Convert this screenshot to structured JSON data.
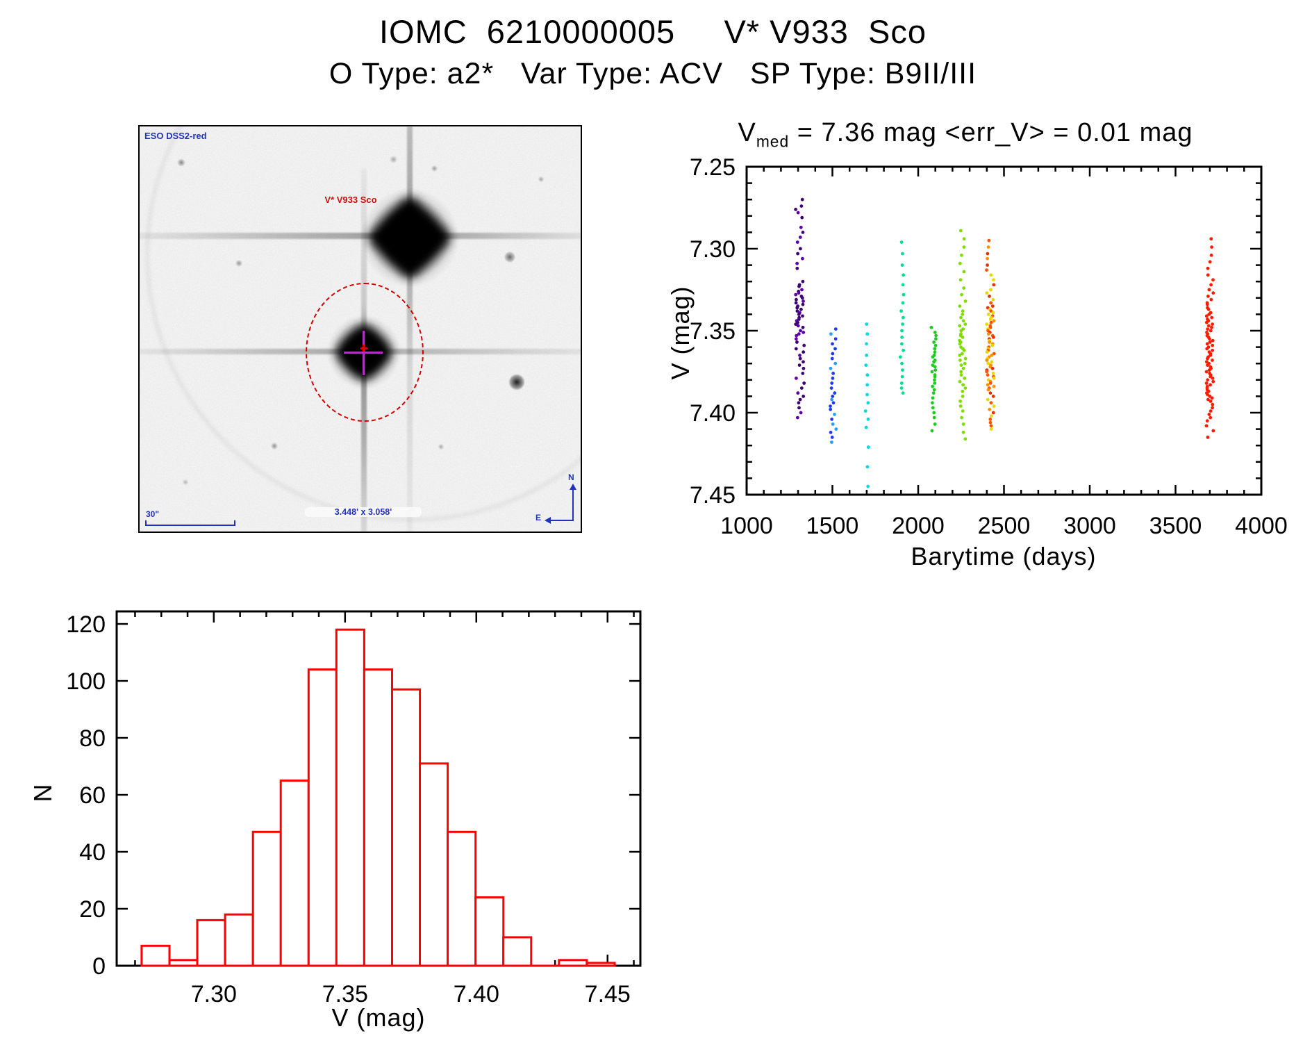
{
  "header": {
    "title": "IOMC  6210000005     V* V933  Sco",
    "subtitle": "O Type: a2*   Var Type: ACV   SP Type: B9II/III"
  },
  "finder_image": {
    "survey_label": "ESO DSS2-red",
    "target_label": "V* V933 Sco",
    "scale_bar_label": "30\"",
    "fov_label": "3.448' x 3.058'",
    "compass": {
      "north": "N",
      "east": "E"
    },
    "annotation_color": "#2233bb",
    "target_color": "#cc1111"
  },
  "chart_data": [
    {
      "type": "scatter",
      "title": {
        "prefix": "V",
        "subscript": "med",
        "suffix": " = 7.36 mag <err_V> = 0.01 mag"
      },
      "xlabel": "Barytime (days)",
      "ylabel": "V (mag)",
      "xlim": [
        1000,
        4000
      ],
      "ylim": [
        7.25,
        7.45
      ],
      "y_inverted_magnitude_axis": true,
      "xticks": [
        1000,
        1500,
        2000,
        2500,
        3000,
        3500,
        4000
      ],
      "yticks": [
        7.25,
        7.3,
        7.35,
        7.4,
        7.45
      ],
      "x_minor": 100,
      "y_minor": 0.01,
      "grid": false,
      "legend": "none",
      "series": [
        {
          "name": "epoch-1310",
          "x": 1310,
          "x_jitter": 25,
          "color": "#3d0073",
          "color2": "#5c00aa",
          "values": [
            7.27,
            7.274,
            7.276,
            7.278,
            7.281,
            7.287,
            7.29,
            7.293,
            7.296,
            7.3,
            7.303,
            7.306,
            7.309,
            7.312,
            7.32,
            7.322,
            7.323,
            7.325,
            7.326,
            7.327,
            7.328,
            7.329,
            7.33,
            7.331,
            7.332,
            7.333,
            7.334,
            7.335,
            7.336,
            7.337,
            7.338,
            7.339,
            7.34,
            7.341,
            7.342,
            7.343,
            7.344,
            7.345,
            7.346,
            7.347,
            7.348,
            7.35,
            7.351,
            7.352,
            7.353,
            7.355,
            7.357,
            7.359,
            7.361,
            7.363,
            7.365,
            7.367,
            7.369,
            7.371,
            7.373,
            7.376,
            7.379,
            7.382,
            7.385,
            7.388,
            7.39,
            7.392,
            7.394,
            7.397,
            7.4,
            7.403
          ]
        },
        {
          "name": "epoch-1505",
          "x": 1505,
          "x_jitter": 18,
          "color": "#1f3cec",
          "color2": "#2a9df4",
          "values": [
            7.349,
            7.352,
            7.355,
            7.358,
            7.361,
            7.364,
            7.367,
            7.37,
            7.373,
            7.376,
            7.379,
            7.382,
            7.385,
            7.388,
            7.39,
            7.392,
            7.394,
            7.396,
            7.398,
            7.401,
            7.404,
            7.407,
            7.41,
            7.412,
            7.415,
            7.418
          ]
        },
        {
          "name": "epoch-1700",
          "x": 1700,
          "x_jitter": 10,
          "color": "#00d9e0",
          "values": [
            7.346,
            7.352,
            7.358,
            7.365,
            7.371,
            7.377,
            7.383,
            7.389,
            7.394,
            7.399,
            7.404,
            7.409,
            7.421,
            7.433,
            7.445
          ]
        },
        {
          "name": "epoch-1905",
          "x": 1905,
          "x_jitter": 10,
          "color": "#00df8f",
          "values": [
            7.296,
            7.303,
            7.31,
            7.316,
            7.322,
            7.328,
            7.333,
            7.338,
            7.342,
            7.346,
            7.35,
            7.354,
            7.358,
            7.362,
            7.366,
            7.37,
            7.374,
            7.378,
            7.382,
            7.385,
            7.388
          ]
        },
        {
          "name": "epoch-2090",
          "x": 2090,
          "x_jitter": 14,
          "color": "#1ecc1e",
          "values": [
            7.348,
            7.351,
            7.353,
            7.355,
            7.357,
            7.359,
            7.361,
            7.363,
            7.365,
            7.366,
            7.368,
            7.369,
            7.371,
            7.372,
            7.374,
            7.375,
            7.377,
            7.378,
            7.38,
            7.382,
            7.384,
            7.386,
            7.388,
            7.391,
            7.394,
            7.397,
            7.4,
            7.403,
            7.407,
            7.411
          ]
        },
        {
          "name": "epoch-2258",
          "x": 2258,
          "x_jitter": 18,
          "color": "#7fdd00",
          "values": [
            7.289,
            7.294,
            7.299,
            7.304,
            7.309,
            7.314,
            7.319,
            7.324,
            7.328,
            7.332,
            7.335,
            7.338,
            7.34,
            7.342,
            7.344,
            7.346,
            7.347,
            7.349,
            7.35,
            7.352,
            7.353,
            7.354,
            7.356,
            7.357,
            7.358,
            7.36,
            7.361,
            7.362,
            7.364,
            7.365,
            7.367,
            7.368,
            7.37,
            7.371,
            7.373,
            7.375,
            7.377,
            7.379,
            7.381,
            7.383,
            7.385,
            7.387,
            7.39,
            7.393,
            7.396,
            7.399,
            7.403,
            7.407,
            7.412,
            7.416
          ]
        },
        {
          "name": "epoch-2420",
          "x": 2420,
          "x_jitter": 22,
          "color": "#ff9100",
          "palette": [
            "#e8d800",
            "#ff9100",
            "#ff5500",
            "#e83000"
          ],
          "values": [
            7.295,
            7.299,
            7.303,
            7.306,
            7.31,
            7.313,
            7.316,
            7.319,
            7.322,
            7.325,
            7.327,
            7.329,
            7.331,
            7.333,
            7.335,
            7.336,
            7.337,
            7.338,
            7.339,
            7.34,
            7.341,
            7.342,
            7.343,
            7.344,
            7.345,
            7.346,
            7.347,
            7.348,
            7.349,
            7.35,
            7.351,
            7.352,
            7.353,
            7.354,
            7.355,
            7.356,
            7.357,
            7.358,
            7.359,
            7.36,
            7.361,
            7.362,
            7.363,
            7.364,
            7.365,
            7.366,
            7.367,
            7.368,
            7.369,
            7.37,
            7.371,
            7.372,
            7.373,
            7.374,
            7.375,
            7.376,
            7.377,
            7.378,
            7.379,
            7.38,
            7.381,
            7.382,
            7.383,
            7.384,
            7.385,
            7.386,
            7.388,
            7.39,
            7.392,
            7.394,
            7.396,
            7.398,
            7.4,
            7.402,
            7.404,
            7.406,
            7.408,
            7.41
          ]
        },
        {
          "name": "epoch-3700",
          "x": 3700,
          "x_jitter": 20,
          "color": "#ff1a00",
          "values": [
            7.294,
            7.299,
            7.304,
            7.308,
            7.312,
            7.316,
            7.319,
            7.322,
            7.325,
            7.327,
            7.329,
            7.331,
            7.333,
            7.334,
            7.336,
            7.337,
            7.339,
            7.34,
            7.341,
            7.342,
            7.343,
            7.344,
            7.345,
            7.346,
            7.347,
            7.348,
            7.349,
            7.35,
            7.351,
            7.352,
            7.353,
            7.354,
            7.355,
            7.356,
            7.357,
            7.358,
            7.359,
            7.36,
            7.361,
            7.362,
            7.363,
            7.364,
            7.365,
            7.366,
            7.367,
            7.368,
            7.369,
            7.37,
            7.371,
            7.372,
            7.373,
            7.374,
            7.375,
            7.376,
            7.377,
            7.378,
            7.379,
            7.38,
            7.381,
            7.382,
            7.383,
            7.384,
            7.385,
            7.386,
            7.387,
            7.388,
            7.389,
            7.39,
            7.391,
            7.392,
            7.393,
            7.395,
            7.397,
            7.399,
            7.401,
            7.403,
            7.405,
            7.408,
            7.411,
            7.415
          ]
        }
      ]
    },
    {
      "type": "histogram",
      "title": "",
      "xlabel": "V (mag)",
      "ylabel": "N",
      "xlim": [
        7.263,
        7.4625
      ],
      "ylim": [
        0,
        124.4
      ],
      "xticks": [
        7.3,
        7.35,
        7.4,
        7.45
      ],
      "x_minor": 0.01,
      "yticks": [
        0,
        20,
        40,
        60,
        80,
        100,
        120
      ],
      "bin_start": 7.2725,
      "bin_width": 0.0106,
      "counts": [
        7,
        2,
        16,
        18,
        47,
        65,
        104,
        118,
        104,
        97,
        71,
        47,
        24,
        10,
        0,
        2,
        1
      ],
      "color": "#ff0000",
      "grid": false
    }
  ]
}
